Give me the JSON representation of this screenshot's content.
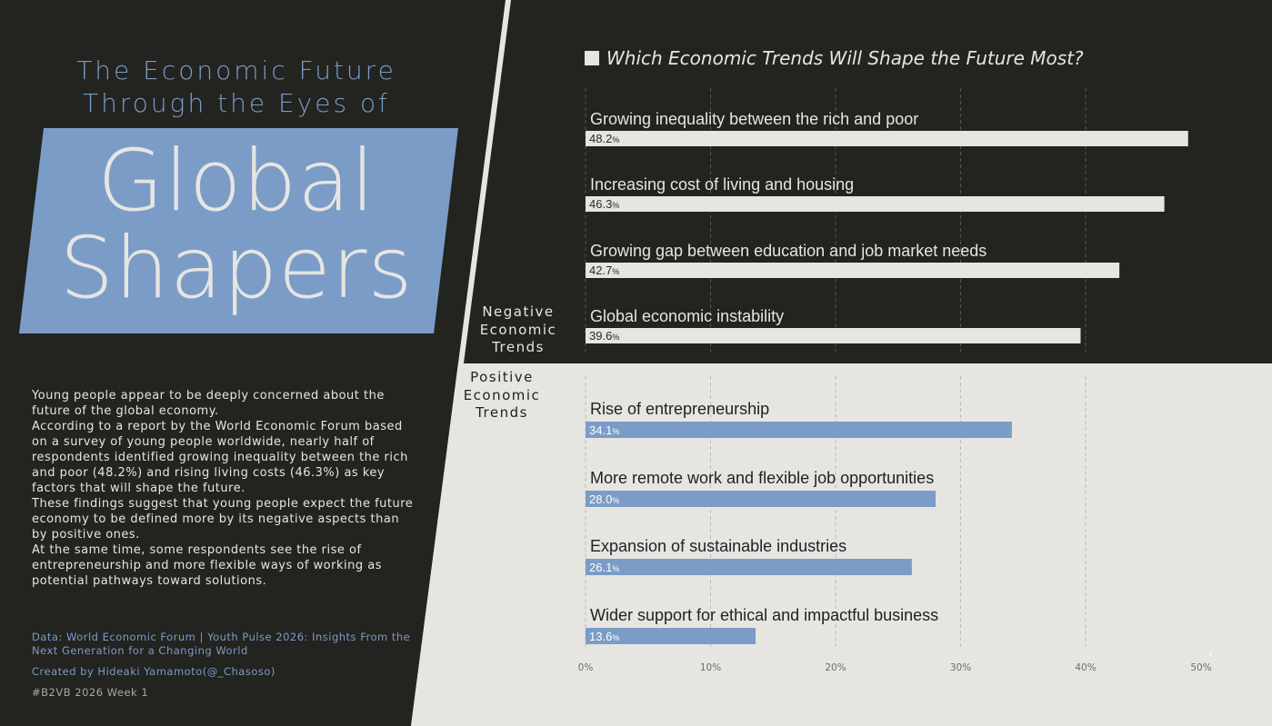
{
  "header": {
    "subtitle_line1": "The Economic Future",
    "subtitle_line2": "Through the Eyes of",
    "title_line1": "Global",
    "title_line2": "Shapers"
  },
  "description": {
    "paragraphs": [
      "Young people appear to be deeply concerned about the future of the global economy.",
      "According to a report by the World Economic Forum based on a survey of young people worldwide, nearly half of respondents identified growing inequality between the rich and poor (48.2%) and rising living costs (46.3%) as key factors that will shape the future.",
      "These findings suggest that young people expect the future economy to be defined more by its negative aspects than by positive ones.",
      "At the same time, some respondents see the rise of entrepreneurship and more flexible ways of working as potential pathways toward solutions."
    ]
  },
  "credits": {
    "source": "Data: World Economic Forum | Youth Pulse 2026: Insights From the Next Generation for a Changing World",
    "created_by": "Created by Hideaki Yamamoto(@_Chasoso)",
    "tag": "#B2VB 2026 Week 1"
  },
  "colors": {
    "dark_bg": "#232320",
    "light_bg": "#e6e5e2",
    "accent_blue": "#7b9cc6",
    "negative_bar": "#e6e5e2",
    "positive_bar": "#7b9cc6"
  },
  "chart_data": {
    "type": "bar",
    "orientation": "horizontal",
    "title": "Which Economic Trends Will Shape the Future Most?",
    "value_suffix": "%",
    "xlim": [
      0,
      50
    ],
    "x_ticks": [
      0,
      10,
      20,
      30,
      40,
      50
    ],
    "x_tick_labels": [
      "0%",
      "10%",
      "20%",
      "30%",
      "40%",
      "50%"
    ],
    "grid": true,
    "groups": [
      {
        "name": "Negative Economic Trends",
        "name_lines": [
          "Negative",
          "Economic",
          "Trends"
        ],
        "categories": [
          "Growing inequality between the rich and poor",
          "Increasing cost of living and housing",
          "Growing gap between education and job market needs",
          "Global economic instability"
        ],
        "values": [
          48.2,
          46.3,
          42.7,
          39.6
        ],
        "value_labels": [
          "48.2",
          "46.3",
          "42.7",
          "39.6"
        ]
      },
      {
        "name": "Positive Economic Trends",
        "name_lines": [
          "Positive",
          "Economic",
          "Trends"
        ],
        "categories": [
          "Rise of entrepreneurship",
          "More remote work and flexible job opportunities",
          "Expansion of sustainable industries",
          "Wider support for ethical and impactful business"
        ],
        "values": [
          34.1,
          28.0,
          26.1,
          13.6
        ],
        "value_labels": [
          "34.1",
          "28.0",
          "26.1",
          "13.6"
        ]
      }
    ]
  }
}
